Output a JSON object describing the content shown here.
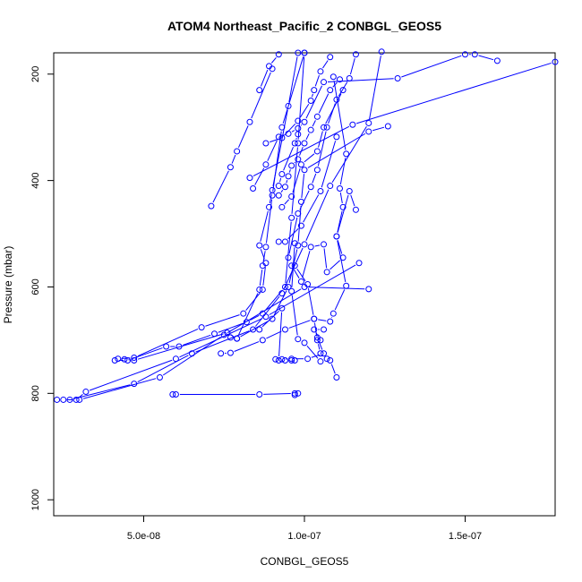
{
  "chart_data": {
    "type": "line",
    "title": "ATOM4 Northeast_Pacific_2 CONBGL_GEOS5",
    "xlabel": "CONBGL_GEOS5",
    "ylabel": "Pressure (mbar)",
    "xlim": [
      2.2e-08,
      1.78e-07
    ],
    "ylim": [
      1030,
      160
    ],
    "y_reversed": true,
    "x_ticks": [
      {
        "value": 5e-08,
        "label": "5.0e-08"
      },
      {
        "value": 1e-07,
        "label": "1.0e-07"
      },
      {
        "value": 1.5e-07,
        "label": "1.5e-07"
      }
    ],
    "y_ticks": [
      {
        "value": 200,
        "label": "200"
      },
      {
        "value": 400,
        "label": "400"
      },
      {
        "value": 600,
        "label": "600"
      },
      {
        "value": 800,
        "label": "800"
      },
      {
        "value": 1000,
        "label": "1000"
      }
    ],
    "color": "#0000ff",
    "marker": "open-circle",
    "grid": false,
    "series": [
      {
        "points": [
          [
            2.3e-08,
            812
          ],
          [
            2.5e-08,
            812
          ],
          [
            2.9e-08,
            812
          ],
          [
            3.2e-08,
            797
          ],
          [
            6e-08,
            735
          ],
          [
            8.8e-08,
            656
          ],
          [
            1.17e-07,
            555
          ]
        ]
      },
      {
        "points": [
          [
            2.7e-08,
            812
          ],
          [
            4.7e-08,
            782
          ],
          [
            6.5e-08,
            725
          ],
          [
            8.4e-08,
            680
          ],
          [
            9.3e-08,
            612
          ],
          [
            1e-07,
            520
          ],
          [
            1.08e-07,
            410
          ],
          [
            1.2e-07,
            292
          ],
          [
            1.24e-07,
            158
          ]
        ]
      },
      {
        "points": [
          [
            3e-08,
            812
          ],
          [
            5.5e-08,
            770
          ],
          [
            7.5e-08,
            690
          ],
          [
            1e-07,
            600
          ],
          [
            1.2e-07,
            604
          ]
        ]
      },
      {
        "points": [
          [
            4.1e-08,
            738
          ],
          [
            4.5e-08,
            738
          ],
          [
            5.7e-08,
            712
          ],
          [
            6.1e-08,
            712
          ],
          [
            7.2e-08,
            688
          ],
          [
            8.2e-08,
            666
          ],
          [
            8.7e-08,
            650
          ],
          [
            9.4e-08,
            600
          ],
          [
            9.6e-08,
            470
          ],
          [
            9.8e-08,
            330
          ],
          [
            1e-07,
            160
          ]
        ]
      },
      {
        "points": [
          [
            4.2e-08,
            735
          ],
          [
            4.7e-08,
            733
          ],
          [
            6.8e-08,
            676
          ],
          [
            8.1e-08,
            650
          ],
          [
            8.7e-08,
            605
          ],
          [
            8.8e-08,
            555
          ],
          [
            8.6e-08,
            522
          ],
          [
            8.9e-08,
            450
          ],
          [
            9e-08,
            418
          ],
          [
            9.5e-08,
            260
          ],
          [
            9.8e-08,
            160
          ]
        ]
      },
      {
        "points": [
          [
            4.4e-08,
            736
          ],
          [
            4.7e-08,
            738
          ],
          [
            7.6e-08,
            686
          ],
          [
            7.9e-08,
            697
          ],
          [
            8.6e-08,
            605
          ],
          [
            8.7e-08,
            560
          ],
          [
            8.8e-08,
            525
          ],
          [
            9e-08,
            428
          ],
          [
            9.3e-08,
            300
          ],
          [
            1e-07,
            160
          ]
        ]
      },
      {
        "points": [
          [
            5.9e-08,
            802
          ],
          [
            6e-08,
            802
          ],
          [
            8.6e-08,
            802
          ],
          [
            9.7e-08,
            800
          ],
          [
            9.7e-08,
            803
          ],
          [
            9.8e-08,
            800
          ]
        ]
      },
      {
        "points": [
          [
            7.1e-08,
            448
          ],
          [
            7.7e-08,
            375
          ],
          [
            7.9e-08,
            345
          ],
          [
            8.3e-08,
            290
          ],
          [
            9e-08,
            190
          ]
        ]
      },
      {
        "points": [
          [
            7.4e-08,
            725
          ],
          [
            7.7e-08,
            724
          ],
          [
            8.7e-08,
            700
          ],
          [
            9.4e-08,
            680
          ],
          [
            1.03e-07,
            660
          ],
          [
            1.08e-07,
            665
          ],
          [
            1.09e-07,
            650
          ],
          [
            1.13e-07,
            598
          ],
          [
            1.1e-07,
            505
          ],
          [
            1.14e-07,
            420
          ],
          [
            1.16e-07,
            455
          ]
        ]
      },
      {
        "points": [
          [
            7.7e-08,
            695
          ],
          [
            7.9e-08,
            697
          ],
          [
            9e-08,
            660
          ],
          [
            9.5e-08,
            600
          ],
          [
            9.8e-08,
            522
          ],
          [
            9.9e-08,
            440
          ],
          [
            1e-07,
            380
          ],
          [
            1.2e-07,
            308
          ],
          [
            1.26e-07,
            298
          ]
        ]
      },
      {
        "points": [
          [
            8.3e-08,
            395
          ],
          [
            1.15e-07,
            295
          ],
          [
            1.78e-07,
            177
          ]
        ]
      },
      {
        "points": [
          [
            8.6e-08,
            230
          ],
          [
            8.9e-08,
            185
          ],
          [
            9.2e-08,
            163
          ]
        ]
      },
      {
        "points": [
          [
            8.8e-08,
            330
          ],
          [
            9.3e-08,
            320
          ],
          [
            9.8e-08,
            288
          ],
          [
            1.02e-07,
            250
          ],
          [
            1.03e-07,
            230
          ],
          [
            1.05e-07,
            195
          ],
          [
            1.08e-07,
            168
          ]
        ]
      },
      {
        "points": [
          [
            8.4e-08,
            415
          ],
          [
            8.8e-08,
            370
          ],
          [
            9.2e-08,
            318
          ],
          [
            9.5e-08,
            312
          ],
          [
            9.8e-08,
            302
          ],
          [
            1e-07,
            290
          ],
          [
            1.06e-07,
            215
          ],
          [
            1.29e-07,
            208
          ],
          [
            1.5e-07,
            163
          ],
          [
            1.53e-07,
            163
          ],
          [
            1.6e-07,
            175
          ]
        ]
      },
      {
        "points": [
          [
            8.6e-08,
            680
          ],
          [
            9.3e-08,
            640
          ],
          [
            9.2e-08,
            738
          ],
          [
            9.4e-08,
            738
          ],
          [
            9.6e-08,
            738
          ],
          [
            9.7e-08,
            738
          ]
        ]
      },
      {
        "points": [
          [
            9.1e-08,
            736
          ],
          [
            9.3e-08,
            736
          ],
          [
            9.6e-08,
            735
          ],
          [
            1.01e-07,
            735
          ],
          [
            1.06e-07,
            725
          ],
          [
            1.04e-07,
            695
          ],
          [
            1.05e-07,
            700
          ],
          [
            1.03e-07,
            680
          ],
          [
            1.06e-07,
            680
          ]
        ]
      },
      {
        "points": [
          [
            9.2e-08,
            410
          ],
          [
            9.3e-08,
            388
          ],
          [
            9.7e-08,
            330
          ],
          [
            9.8e-08,
            313
          ]
        ]
      },
      {
        "points": [
          [
            9.2e-08,
            428
          ],
          [
            9.4e-08,
            412
          ],
          [
            9.5e-08,
            392
          ],
          [
            9.6e-08,
            372
          ],
          [
            9.8e-08,
            360
          ],
          [
            1e-07,
            330
          ],
          [
            1.02e-07,
            305
          ],
          [
            1.04e-07,
            280
          ],
          [
            1.08e-07,
            230
          ],
          [
            1.11e-07,
            210
          ]
        ]
      },
      {
        "points": [
          [
            9.2e-08,
            515
          ],
          [
            9.4e-08,
            515
          ],
          [
            9.9e-08,
            485
          ],
          [
            1.05e-07,
            420
          ],
          [
            1.1e-07,
            318
          ]
        ]
      },
      {
        "points": [
          [
            9.3e-08,
            450
          ],
          [
            9.6e-08,
            430
          ],
          [
            9.9e-08,
            370
          ],
          [
            1.04e-07,
            345
          ],
          [
            1.06e-07,
            300
          ],
          [
            1.12e-07,
            230
          ]
        ]
      },
      {
        "points": [
          [
            9.5e-08,
            545
          ],
          [
            9.8e-08,
            462
          ],
          [
            1.02e-07,
            412
          ],
          [
            1.04e-07,
            380
          ],
          [
            1.07e-07,
            300
          ],
          [
            1.1e-07,
            248
          ],
          [
            1.14e-07,
            208
          ],
          [
            1.16e-07,
            163
          ]
        ]
      },
      {
        "points": [
          [
            9.6e-08,
            560
          ],
          [
            9.9e-08,
            590
          ],
          [
            1.02e-07,
            525
          ],
          [
            1.06e-07,
            520
          ],
          [
            1.07e-07,
            572
          ],
          [
            1.12e-07,
            545
          ],
          [
            1.1e-07,
            505
          ],
          [
            1.12e-07,
            450
          ],
          [
            1.11e-07,
            415
          ],
          [
            1.13e-07,
            350
          ],
          [
            1.09e-07,
            205
          ]
        ]
      },
      {
        "points": [
          [
            9.7e-08,
            518
          ],
          [
            9.6e-08,
            608
          ],
          [
            9.8e-08,
            698
          ],
          [
            1e-07,
            705
          ],
          [
            1.05e-07,
            740
          ],
          [
            1.07e-07,
            735
          ],
          [
            1.08e-07,
            738
          ],
          [
            1.1e-07,
            770
          ]
        ]
      },
      {
        "points": [
          [
            9.7e-08,
            560
          ],
          [
            1.01e-07,
            595
          ],
          [
            1.03e-07,
            660
          ],
          [
            1.04e-07,
            700
          ],
          [
            1.05e-07,
            725
          ]
        ]
      }
    ]
  }
}
